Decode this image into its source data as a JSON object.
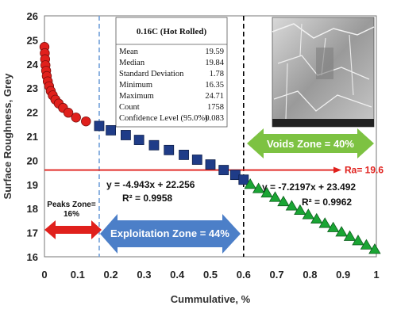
{
  "chart_data": {
    "type": "scatter",
    "xlabel": "Cummulative, %",
    "ylabel": "Surface Roughness, Grey",
    "xlim": [
      0,
      1
    ],
    "ylim": [
      16,
      26
    ],
    "x_ticks": [
      "0",
      "0.1",
      "0.2",
      "0.3",
      "0.4",
      "0.5",
      "0.6",
      "0.7",
      "0.8",
      "0.9",
      "1"
    ],
    "y_ticks": [
      "16",
      "17",
      "18",
      "19",
      "20",
      "21",
      "22",
      "23",
      "24",
      "25",
      "26"
    ],
    "series": [
      {
        "marker": "circle",
        "color": "#e0201c",
        "points": [
          [
            0.0,
            24.71
          ],
          [
            0.001,
            24.45
          ],
          [
            0.002,
            24.2
          ],
          [
            0.003,
            23.95
          ],
          [
            0.005,
            23.72
          ],
          [
            0.007,
            23.5
          ],
          [
            0.01,
            23.28
          ],
          [
            0.014,
            23.08
          ],
          [
            0.019,
            22.88
          ],
          [
            0.025,
            22.7
          ],
          [
            0.033,
            22.52
          ],
          [
            0.043,
            22.36
          ],
          [
            0.056,
            22.18
          ],
          [
            0.072,
            21.98
          ],
          [
            0.095,
            21.78
          ],
          [
            0.125,
            21.62
          ]
        ]
      },
      {
        "marker": "square",
        "color": "#1f3c88",
        "points": [
          [
            0.165,
            21.43
          ],
          [
            0.2,
            21.25
          ],
          [
            0.245,
            21.05
          ],
          [
            0.285,
            20.85
          ],
          [
            0.33,
            20.63
          ],
          [
            0.375,
            20.43
          ],
          [
            0.42,
            20.23
          ],
          [
            0.46,
            20.03
          ],
          [
            0.5,
            19.83
          ],
          [
            0.54,
            19.6
          ],
          [
            0.575,
            19.4
          ],
          [
            0.6,
            19.2
          ]
        ]
      },
      {
        "marker": "triangle",
        "color": "#1aa534",
        "points": [
          [
            0.62,
            19.0
          ],
          [
            0.645,
            18.82
          ],
          [
            0.67,
            18.64
          ],
          [
            0.695,
            18.46
          ],
          [
            0.72,
            18.28
          ],
          [
            0.745,
            18.1
          ],
          [
            0.77,
            17.92
          ],
          [
            0.795,
            17.74
          ],
          [
            0.82,
            17.56
          ],
          [
            0.845,
            17.38
          ],
          [
            0.87,
            17.2
          ],
          [
            0.895,
            17.02
          ],
          [
            0.92,
            16.84
          ],
          [
            0.945,
            16.66
          ],
          [
            0.97,
            16.48
          ],
          [
            0.995,
            16.3
          ]
        ]
      }
    ],
    "vertical_lines": [
      {
        "x": 0.165,
        "color": "#6f9ed8",
        "style": "dashed"
      },
      {
        "x": 0.6,
        "color": "#000000",
        "style": "dashed"
      }
    ],
    "reference_line": {
      "y": 19.6,
      "color": "#e0201c",
      "label": "Ra= 19.6"
    },
    "trendlines": [
      {
        "equation": "y = -4.943x + 22.256",
        "r2": "R² = 0.9958"
      },
      {
        "equation": "y = -7.2197x + 23.492",
        "r2": "R² = 0.9962"
      }
    ],
    "zones": [
      {
        "label": "Peaks Zone=",
        "sublabel": "16%",
        "color": "#e0201c",
        "x_range": [
          0.0,
          0.165
        ]
      },
      {
        "label": "Exploitation Zone = 44%",
        "color": "#4c7fc8",
        "x_range": [
          0.165,
          0.6
        ]
      },
      {
        "label": "Voids Zone = 40%",
        "color": "#7dc242",
        "x_range": [
          0.6,
          1.0
        ]
      }
    ],
    "stats_table": {
      "title": "0.16C (Hot Rolled)",
      "rows": [
        {
          "label": "Mean",
          "value": "19.59"
        },
        {
          "label": "Median",
          "value": "19.84"
        },
        {
          "label": "Standard Deviation",
          "value": "1.78"
        },
        {
          "label": "Minimum",
          "value": "16.35"
        },
        {
          "label": "Maximum",
          "value": "24.71"
        },
        {
          "label": "Count",
          "value": "1758"
        },
        {
          "label": "Confidence Level (95.0%)",
          "value": "0.083"
        }
      ]
    },
    "micrograph": {
      "type": "sem-micrograph-image"
    }
  }
}
